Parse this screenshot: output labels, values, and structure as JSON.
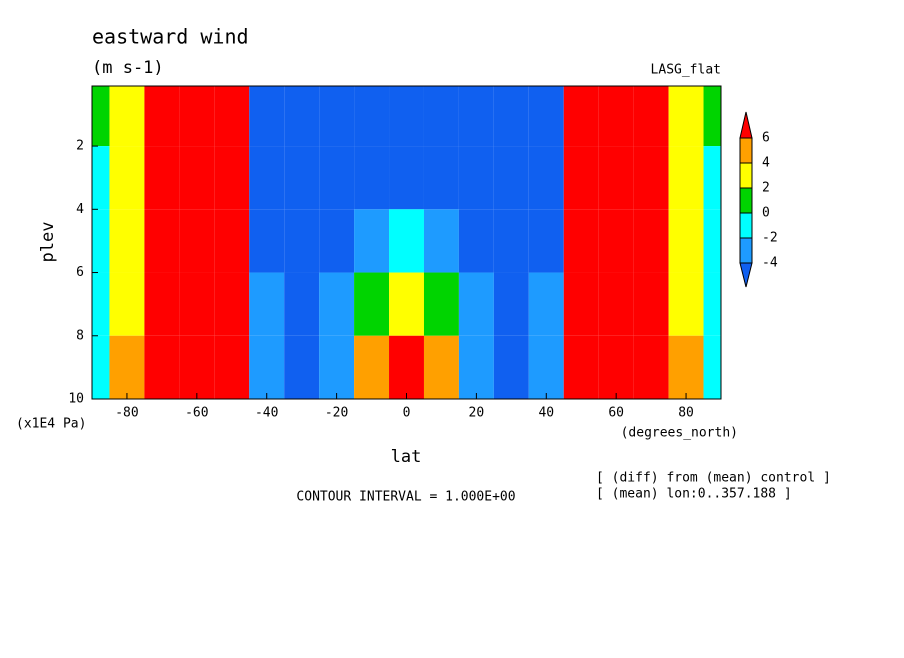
{
  "chart_data": {
    "type": "contour",
    "title": "eastward wind",
    "subtitle": "(m s-1)",
    "dataset": "LASG_flat",
    "x_label": "lat",
    "x_units": "(degrees_north)",
    "y_label": "plev",
    "y_units": "(x1E4 Pa)",
    "contour_note": "CONTOUR INTERVAL = 1.000E+00",
    "notes": [
      "[ (diff) from (mean) control ]",
      "[ (mean) lon:0..357.188 ]"
    ],
    "x": [
      -90,
      -80,
      -70,
      -60,
      -50,
      -40,
      -30,
      -20,
      -10,
      0,
      10,
      20,
      30,
      40,
      50,
      60,
      70,
      80,
      90
    ],
    "y": [
      1,
      3,
      5,
      7,
      9
    ],
    "z": [
      [
        1,
        3,
        8,
        14,
        10,
        -6,
        -14,
        -10,
        -12,
        -14,
        -12,
        -10,
        -14,
        -6,
        10,
        14,
        8,
        3,
        1
      ],
      [
        -1,
        2,
        6,
        16,
        12,
        -8,
        -12,
        -8,
        -10,
        -12,
        -10,
        -8,
        -12,
        -8,
        12,
        16,
        6,
        2,
        -1
      ],
      [
        -1,
        2,
        6,
        14,
        10,
        -5,
        -8,
        -5,
        -3,
        -2,
        -3,
        -5,
        -8,
        -5,
        10,
        14,
        6,
        2,
        -1
      ],
      [
        -1,
        3,
        8,
        12,
        8,
        -4,
        -6,
        -4,
        0,
        3,
        0,
        -4,
        -6,
        -4,
        8,
        12,
        8,
        3,
        -1
      ],
      [
        -1,
        4,
        10,
        12,
        6,
        -3,
        -5,
        -3,
        4,
        6,
        4,
        -3,
        -5,
        -3,
        6,
        12,
        10,
        4,
        -1
      ]
    ],
    "levels": [
      -4,
      -2,
      0,
      2,
      4,
      6
    ],
    "colors": [
      "#1060f0",
      "#1e9bff",
      "#00ffff",
      "#00d400",
      "#ffff00",
      "#ffa000",
      "#ff0000"
    ],
    "xlim": [
      -90,
      90
    ],
    "xticks": [
      -80,
      -60,
      -40,
      -20,
      0,
      20,
      40,
      60,
      80
    ],
    "ylim": [
      10,
      0.1
    ],
    "yticks": [
      2,
      4,
      6,
      8,
      10
    ]
  }
}
